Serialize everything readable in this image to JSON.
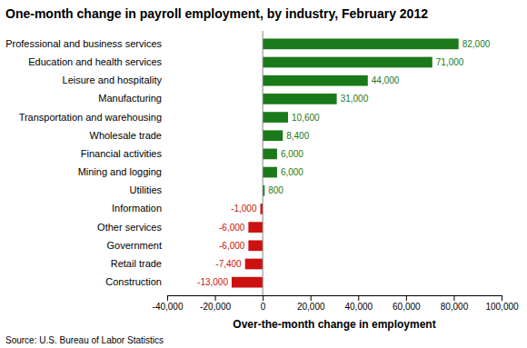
{
  "chart_data": {
    "type": "bar",
    "orientation": "horizontal",
    "title": "One-month change in payroll employment, by industry, February 2012",
    "x_label": "Over-the-month change in employment",
    "source": "Source:  U.S. Bureau of Labor Statistics",
    "categories": [
      "Construction",
      "Retail trade",
      "Government",
      "Other services",
      "Information",
      "Utilities",
      "Mining and logging",
      "Financial activities",
      "Wholesale trade",
      "Transportation and warehousing",
      "Manufacturing",
      "Leisure and hospitality",
      "Education and health services",
      "Professional and business services"
    ],
    "values": [
      -13000,
      -7400,
      -6000,
      -6000,
      -1000,
      800,
      6000,
      6000,
      8400,
      10600,
      31000,
      44000,
      71000,
      82000
    ],
    "value_labels": [
      "-13,000",
      "-7,400",
      "-6,000",
      "-6,000",
      "-1,000",
      "800",
      "6,000",
      "6,000",
      "8,400",
      "10,600",
      "31,000",
      "44,000",
      "71,000",
      "82,000"
    ],
    "colors": [
      "#cc1111",
      "#cc1111",
      "#cc1111",
      "#cc1111",
      "#cc1111",
      "#1a7a1a",
      "#1a7a1a",
      "#1a7a1a",
      "#1a7a1a",
      "#1a7a1a",
      "#1a7a1a",
      "#1a7a1a",
      "#1a7a1a",
      "#1a7a1a"
    ],
    "data_labels": true,
    "grid": false,
    "xlim": [
      -40000,
      100000
    ],
    "xticks": [
      {
        "value": -40000,
        "label": "-40,000"
      },
      {
        "value": -20000,
        "label": "-20,000"
      },
      0,
      {
        "value": 20000,
        "label": "20,000"
      },
      {
        "value": 40000,
        "label": "40,000"
      },
      {
        "value": 60000,
        "label": "60,000"
      },
      {
        "value": 80000,
        "label": "80,000"
      },
      {
        "value": 100000,
        "label": "100,000"
      }
    ]
  }
}
